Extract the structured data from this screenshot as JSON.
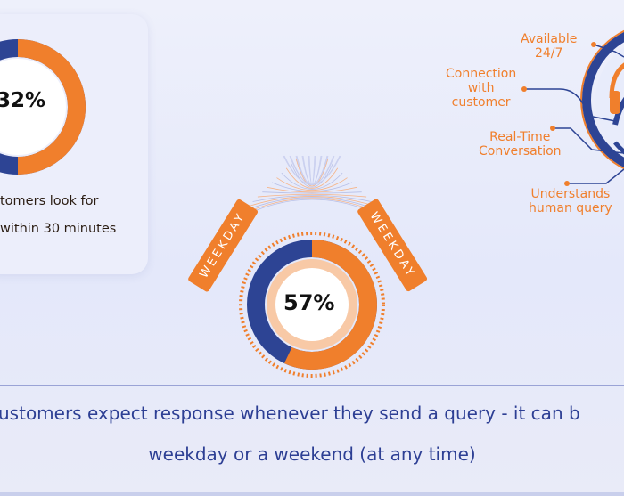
{
  "stat_card": {
    "percent": "32%",
    "percent_value": 0.32,
    "line1": "tomers look for",
    "line2": "within 30 minutes"
  },
  "center_stat": {
    "percent": "57%",
    "percent_value": 0.57,
    "left_label": "WEEKDAY",
    "right_label": "WEEKDAY"
  },
  "features": {
    "available": [
      "Available",
      "24/7"
    ],
    "connection": [
      "Connection",
      "with",
      "customer"
    ],
    "realtime": [
      "Real-Time",
      "Conversation"
    ],
    "understands": [
      "Understands",
      "human query"
    ]
  },
  "footer": {
    "line1": "ustomers expect response whenever they send a query - it can b",
    "line2": "weekday or a weekend (at any time)"
  },
  "colors": {
    "orange": "#f07f2c",
    "navy": "#2d4494",
    "peach": "#f8c9a6",
    "text_blue": "#2d3f94"
  },
  "icons": {
    "agent": "headset-agent-icon"
  }
}
